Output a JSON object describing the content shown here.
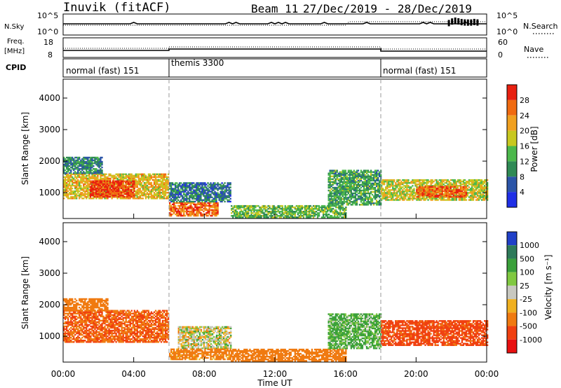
{
  "header": {
    "station": "Inuvik (fitACF)",
    "beam": "Beam 11",
    "date_range": "27/Dec/2019 - 28/Dec/2019"
  },
  "top_panels": {
    "nsky": {
      "left_label": "N.Sky",
      "left_ticks": [
        "10^5",
        "10^0"
      ],
      "right_label": "N.Search",
      "right_ticks": [
        "10^5",
        "10^0"
      ]
    },
    "freq": {
      "left_label_line1": "Freq.",
      "left_label_line2": "[MHz]",
      "left_ticks": [
        "18",
        "8"
      ],
      "right_label": "Nave",
      "right_ticks": [
        "60",
        "0"
      ]
    },
    "cpid": {
      "label": "CPID",
      "segments": [
        {
          "text": "normal (fast) 151",
          "start_hour": 0
        },
        {
          "text": "themis 3300",
          "start_hour": 6
        },
        {
          "text": "normal (fast) 151",
          "start_hour": 18
        }
      ]
    }
  },
  "x_axis": {
    "label": "Time UT",
    "ticks": [
      "00:00",
      "04:00",
      "08:00",
      "12:00",
      "16:00",
      "20:00",
      "00:00"
    ]
  },
  "chart_data": [
    {
      "type": "heatmap",
      "panel": "power",
      "xlabel": "Time UT",
      "ylabel": "Slant Range [km]",
      "xlim": [
        0,
        24
      ],
      "ylim": [
        180,
        4600
      ],
      "y_ticks": [
        1000,
        2000,
        3000,
        4000
      ],
      "colorbar_label": "Power [dB]",
      "colorbar_ticks": [
        "4",
        "8",
        "12",
        "16",
        "20",
        "24",
        "28"
      ],
      "colorbar_range": [
        0,
        30
      ],
      "regions": [
        {
          "t0": 0.0,
          "t1": 6.0,
          "r0": 800,
          "r1": 1600,
          "level": 20
        },
        {
          "t0": 1.5,
          "t1": 4.0,
          "r0": 850,
          "r1": 1350,
          "level": 29
        },
        {
          "t0": 0.0,
          "t1": 2.2,
          "r0": 1600,
          "r1": 2100,
          "level": 10
        },
        {
          "t0": 6.0,
          "t1": 8.8,
          "r0": 250,
          "r1": 700,
          "level": 26
        },
        {
          "t0": 6.0,
          "t1": 9.5,
          "r0": 700,
          "r1": 1300,
          "level": 8
        },
        {
          "t0": 9.5,
          "t1": 16.0,
          "r0": 200,
          "r1": 600,
          "level": 14
        },
        {
          "t0": 15.0,
          "t1": 18.0,
          "r0": 600,
          "r1": 1700,
          "level": 12
        },
        {
          "t0": 18.0,
          "t1": 24.0,
          "r0": 750,
          "r1": 1400,
          "level": 18
        },
        {
          "t0": 20.0,
          "t1": 22.8,
          "r0": 850,
          "r1": 1200,
          "level": 27
        }
      ]
    },
    {
      "type": "heatmap",
      "panel": "velocity",
      "xlabel": "Time UT",
      "ylabel": "Slant Range [km]",
      "xlim": [
        0,
        24
      ],
      "ylim": [
        180,
        4600
      ],
      "y_ticks": [
        1000,
        2000,
        3000,
        4000
      ],
      "colorbar_label": "Velocity [m s⁻¹]",
      "colorbar_ticks": [
        "1000",
        "500",
        "100",
        "25",
        "-25",
        "-100",
        "-500",
        "-1000"
      ],
      "regions": [
        {
          "t0": 0.0,
          "t1": 6.0,
          "r0": 800,
          "r1": 1800,
          "level": -300
        },
        {
          "t0": 0.0,
          "t1": 2.5,
          "r0": 1800,
          "r1": 2200,
          "level": -150
        },
        {
          "t0": 6.5,
          "t1": 9.5,
          "r0": 600,
          "r1": 1300,
          "level": 0
        },
        {
          "t0": 6.0,
          "t1": 9.5,
          "r0": 250,
          "r1": 600,
          "level": -120
        },
        {
          "t0": 9.5,
          "t1": 16.0,
          "r0": 200,
          "r1": 600,
          "level": -200
        },
        {
          "t0": 15.0,
          "t1": 18.0,
          "r0": 600,
          "r1": 1700,
          "level": 80
        },
        {
          "t0": 18.0,
          "t1": 24.0,
          "r0": 700,
          "r1": 1500,
          "level": -350
        }
      ]
    }
  ]
}
